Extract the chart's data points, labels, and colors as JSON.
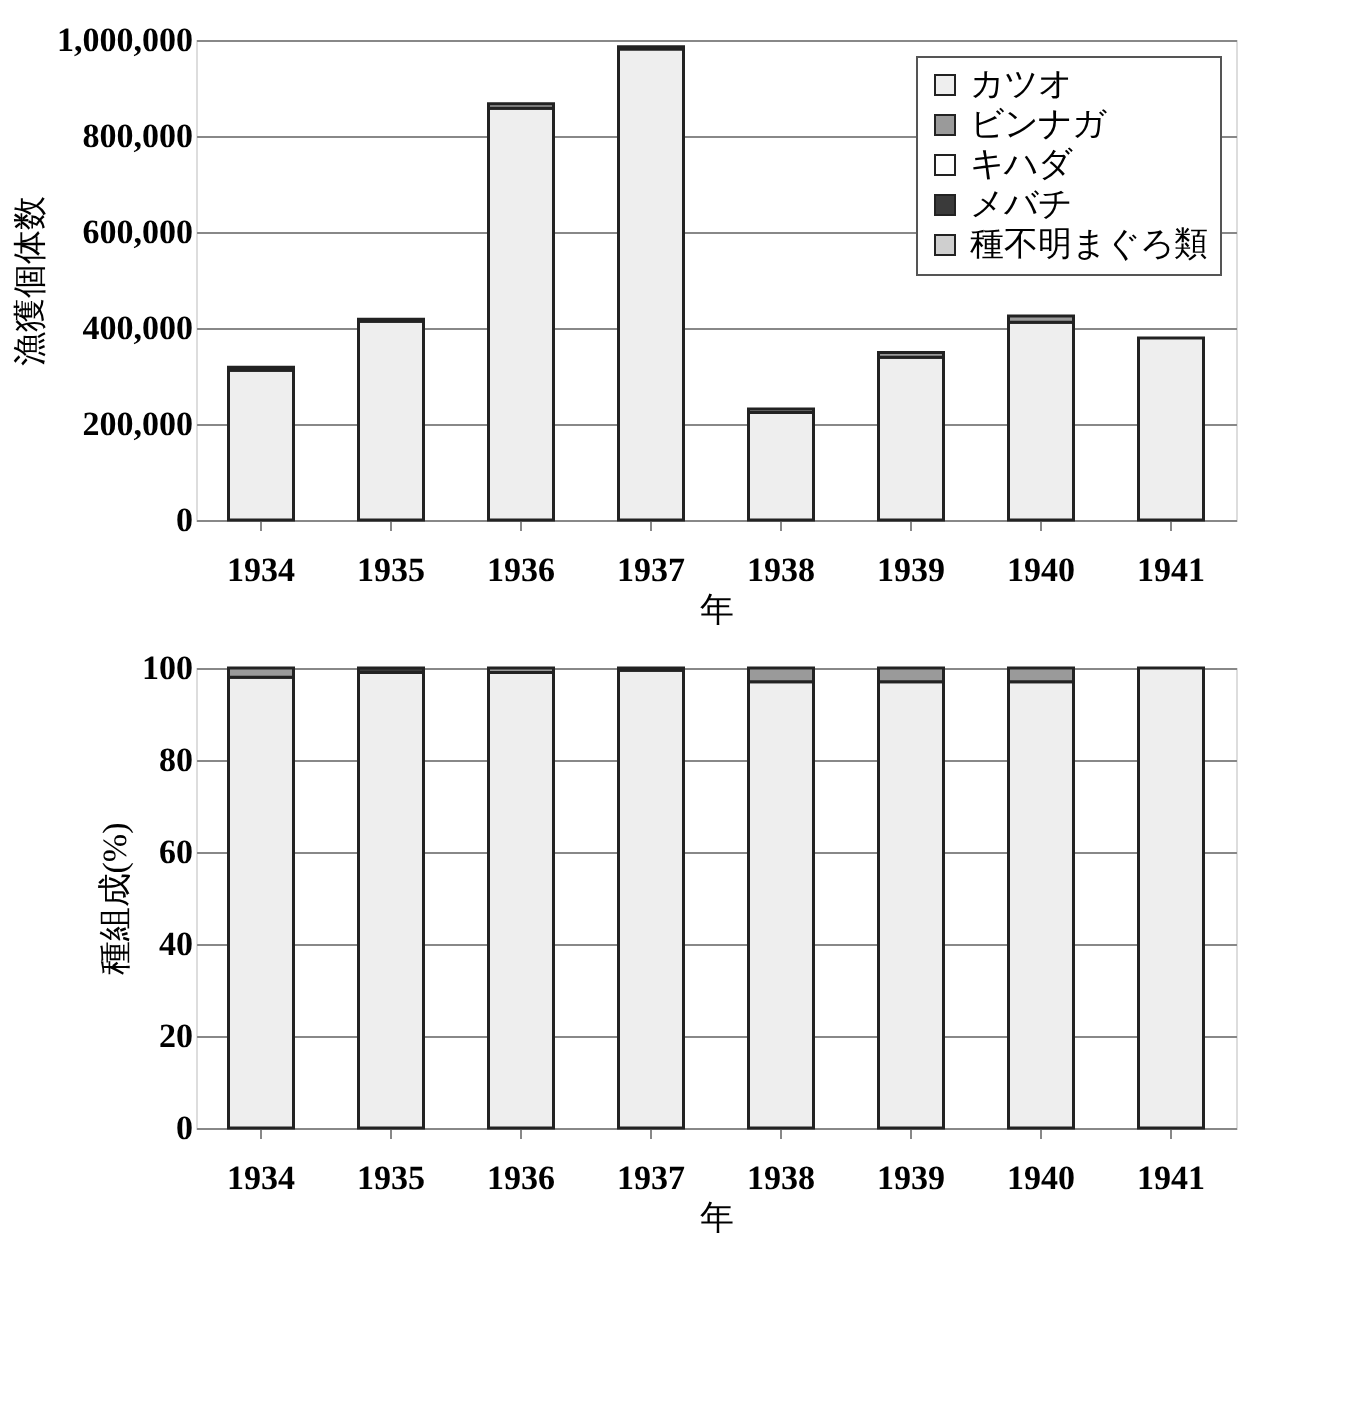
{
  "chart_data": [
    {
      "type": "bar",
      "stacked": true,
      "xlabel": "年",
      "ylabel": "漁獲個体数",
      "categories": [
        "1934",
        "1935",
        "1936",
        "1937",
        "1938",
        "1939",
        "1940",
        "1941"
      ],
      "series": [
        {
          "name": "カツオ",
          "color": "#eeeeee",
          "values": [
            312000,
            414000,
            858000,
            981000,
            224000,
            339000,
            412000,
            379000
          ]
        },
        {
          "name": "ビンナガ",
          "color": "#9a9a9a",
          "values": [
            6000,
            null,
            9000,
            5000,
            7000,
            10000,
            13000,
            null
          ]
        },
        {
          "name": "キハダ",
          "color": "#ffffff",
          "values": [
            null,
            null,
            null,
            null,
            null,
            null,
            null,
            null
          ]
        },
        {
          "name": "メバチ",
          "color": "#3a3a3a",
          "values": [
            null,
            4000,
            null,
            null,
            null,
            null,
            null,
            null
          ]
        },
        {
          "name": "種不明まぐろ類",
          "color": "#cfcfcf",
          "values": [
            null,
            null,
            null,
            null,
            null,
            null,
            null,
            null
          ]
        }
      ],
      "ylim": [
        0,
        1000000
      ],
      "yticks": [
        {
          "value": 0,
          "label": "0"
        },
        {
          "value": 200000,
          "label": "200,000"
        },
        {
          "value": 400000,
          "label": "400,000"
        },
        {
          "value": 600000,
          "label": "600,000"
        },
        {
          "value": 800000,
          "label": "800,000"
        },
        {
          "value": 1000000,
          "label": "1,000,000"
        }
      ],
      "grid": "y",
      "legend": "top right"
    },
    {
      "type": "bar",
      "stacked": true,
      "xlabel": "年",
      "ylabel": "種組成(%)",
      "categories": [
        "1934",
        "1935",
        "1936",
        "1937",
        "1938",
        "1939",
        "1940",
        "1941"
      ],
      "series": [
        {
          "color": "#eeeeee",
          "values": [
            98,
            99,
            99,
            99.5,
            97,
            97,
            97,
            100
          ]
        },
        {
          "color": "#9a9a9a",
          "values": [
            2,
            null,
            1,
            0.5,
            3,
            3,
            3,
            null
          ]
        },
        {
          "color": "#3a3a3a",
          "values": [
            null,
            1,
            null,
            null,
            null,
            null,
            null,
            null
          ]
        }
      ],
      "ylim": [
        0,
        100
      ],
      "yticks": [
        0,
        20,
        40,
        60,
        80,
        100
      ],
      "grid": "y"
    }
  ]
}
